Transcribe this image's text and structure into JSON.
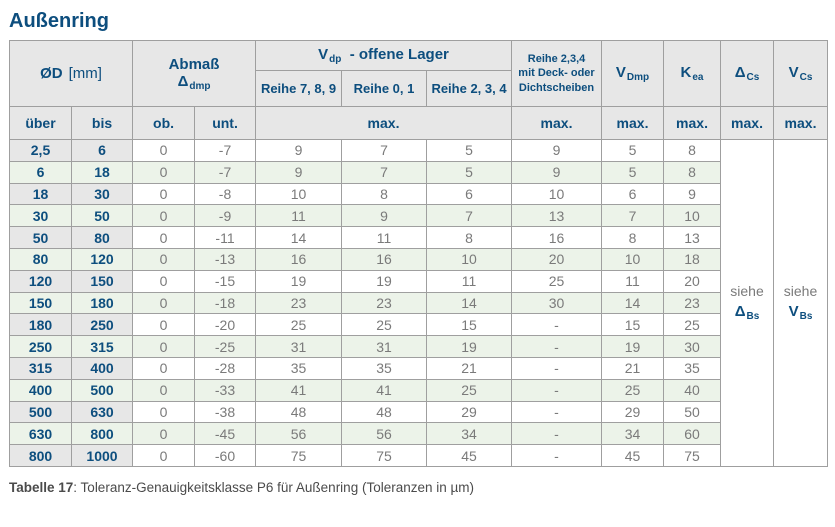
{
  "title": "Außenring",
  "caption": {
    "label": "Tabelle 17",
    "text": ": Toleranz-Genauigkeitsklasse P6 für Außenring (Toleranzen in µm)"
  },
  "colors": {
    "accent": "#0d4e7e",
    "header_bg": "#e7e7e7",
    "row_alt_bg": "#ecf3e9",
    "grid": "#9f9f9f",
    "value_text": "#7a7a7a",
    "caption_text": "#4b4b4b"
  },
  "table": {
    "headers": {
      "diameter": {
        "label": "ØD",
        "unit": "[mm]"
      },
      "abmass": {
        "label": "Abmaß",
        "symbol": "Δ",
        "symbol_sub": "dmp"
      },
      "vdp_group": {
        "symbol": "V",
        "symbol_sub": "dp",
        "rest": "-  offene Lager",
        "series": [
          "Reihe 7, 8, 9",
          "Reihe 0, 1",
          "Reihe 2, 3, 4"
        ]
      },
      "sealed": {
        "line1": "Reihe 2,3,4",
        "line2": "mit Deck- oder",
        "line3": "Dichtscheiben"
      },
      "vdmp": {
        "symbol": "V",
        "symbol_sub": "Dmp"
      },
      "kea": {
        "symbol": "K",
        "symbol_sub": "ea"
      },
      "delta_cs": {
        "symbol": "Δ",
        "symbol_sub": "Cs"
      },
      "vcs": {
        "symbol": "V",
        "symbol_sub": "Cs"
      },
      "sub_row": {
        "ueber": "über",
        "bis": "bis",
        "ob": "ob.",
        "unt": "unt.",
        "max": "max."
      }
    },
    "see_refs": {
      "delta_bs": {
        "word": "siehe",
        "symbol": "Δ",
        "symbol_sub": "Bs"
      },
      "v_bs": {
        "word": "siehe",
        "symbol": "V",
        "symbol_sub": "Bs"
      }
    },
    "rows": [
      {
        "ueber": "2,5",
        "bis": "6",
        "ob": "0",
        "unt": "-7",
        "r789": "9",
        "r01": "7",
        "r234": "5",
        "sealed": "9",
        "vdmp": "5",
        "kea": "8"
      },
      {
        "ueber": "6",
        "bis": "18",
        "ob": "0",
        "unt": "-7",
        "r789": "9",
        "r01": "7",
        "r234": "5",
        "sealed": "9",
        "vdmp": "5",
        "kea": "8"
      },
      {
        "ueber": "18",
        "bis": "30",
        "ob": "0",
        "unt": "-8",
        "r789": "10",
        "r01": "8",
        "r234": "6",
        "sealed": "10",
        "vdmp": "6",
        "kea": "9"
      },
      {
        "ueber": "30",
        "bis": "50",
        "ob": "0",
        "unt": "-9",
        "r789": "11",
        "r01": "9",
        "r234": "7",
        "sealed": "13",
        "vdmp": "7",
        "kea": "10"
      },
      {
        "ueber": "50",
        "bis": "80",
        "ob": "0",
        "unt": "-11",
        "r789": "14",
        "r01": "11",
        "r234": "8",
        "sealed": "16",
        "vdmp": "8",
        "kea": "13"
      },
      {
        "ueber": "80",
        "bis": "120",
        "ob": "0",
        "unt": "-13",
        "r789": "16",
        "r01": "16",
        "r234": "10",
        "sealed": "20",
        "vdmp": "10",
        "kea": "18"
      },
      {
        "ueber": "120",
        "bis": "150",
        "ob": "0",
        "unt": "-15",
        "r789": "19",
        "r01": "19",
        "r234": "11",
        "sealed": "25",
        "vdmp": "11",
        "kea": "20"
      },
      {
        "ueber": "150",
        "bis": "180",
        "ob": "0",
        "unt": "-18",
        "r789": "23",
        "r01": "23",
        "r234": "14",
        "sealed": "30",
        "vdmp": "14",
        "kea": "23"
      },
      {
        "ueber": "180",
        "bis": "250",
        "ob": "0",
        "unt": "-20",
        "r789": "25",
        "r01": "25",
        "r234": "15",
        "sealed": "-",
        "vdmp": "15",
        "kea": "25"
      },
      {
        "ueber": "250",
        "bis": "315",
        "ob": "0",
        "unt": "-25",
        "r789": "31",
        "r01": "31",
        "r234": "19",
        "sealed": "-",
        "vdmp": "19",
        "kea": "30"
      },
      {
        "ueber": "315",
        "bis": "400",
        "ob": "0",
        "unt": "-28",
        "r789": "35",
        "r01": "35",
        "r234": "21",
        "sealed": "-",
        "vdmp": "21",
        "kea": "35"
      },
      {
        "ueber": "400",
        "bis": "500",
        "ob": "0",
        "unt": "-33",
        "r789": "41",
        "r01": "41",
        "r234": "25",
        "sealed": "-",
        "vdmp": "25",
        "kea": "40"
      },
      {
        "ueber": "500",
        "bis": "630",
        "ob": "0",
        "unt": "-38",
        "r789": "48",
        "r01": "48",
        "r234": "29",
        "sealed": "-",
        "vdmp": "29",
        "kea": "50"
      },
      {
        "ueber": "630",
        "bis": "800",
        "ob": "0",
        "unt": "-45",
        "r789": "56",
        "r01": "56",
        "r234": "34",
        "sealed": "-",
        "vdmp": "34",
        "kea": "60"
      },
      {
        "ueber": "800",
        "bis": "1000",
        "ob": "0",
        "unt": "-60",
        "r789": "75",
        "r01": "75",
        "r234": "45",
        "sealed": "-",
        "vdmp": "45",
        "kea": "75"
      }
    ]
  }
}
